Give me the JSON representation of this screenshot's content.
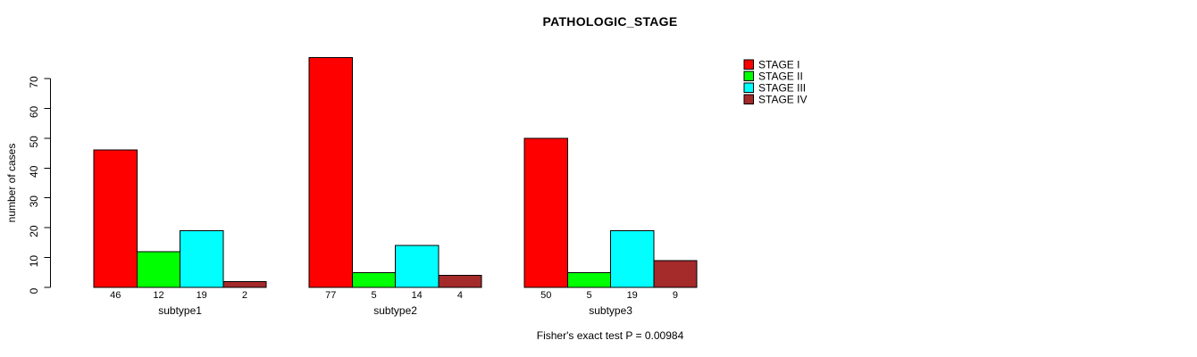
{
  "chart_data": {
    "type": "bar",
    "title": "PATHOLOGIC_STAGE",
    "ylabel": "number of cases",
    "xlabel": "",
    "categories": [
      "subtype1",
      "subtype2",
      "subtype3"
    ],
    "series": [
      {
        "name": "STAGE I",
        "color": "#ff0000",
        "values": [
          46,
          77,
          50
        ]
      },
      {
        "name": "STAGE II",
        "color": "#00ff00",
        "values": [
          12,
          5,
          5
        ]
      },
      {
        "name": "STAGE III",
        "color": "#00ffff",
        "values": [
          19,
          14,
          19
        ]
      },
      {
        "name": "STAGE IV",
        "color": "#a52a2a",
        "values": [
          2,
          4,
          9
        ]
      }
    ],
    "bar_value_labels": [
      [
        "46",
        "12",
        "19",
        "2"
      ],
      [
        "77",
        "5",
        "14",
        "4"
      ],
      [
        "50",
        "5",
        "19",
        "9"
      ]
    ],
    "ylim": [
      0,
      70
    ],
    "yticks": [
      0,
      10,
      20,
      30,
      40,
      50,
      60,
      70
    ],
    "grid": false,
    "legend_position": "top-right",
    "legend": [
      "STAGE I",
      "STAGE II",
      "STAGE III",
      "STAGE IV"
    ],
    "annotation": "Fisher's exact test P = 0.00984",
    "bar_border_color": "#000000",
    "axis_color": "#000000"
  }
}
